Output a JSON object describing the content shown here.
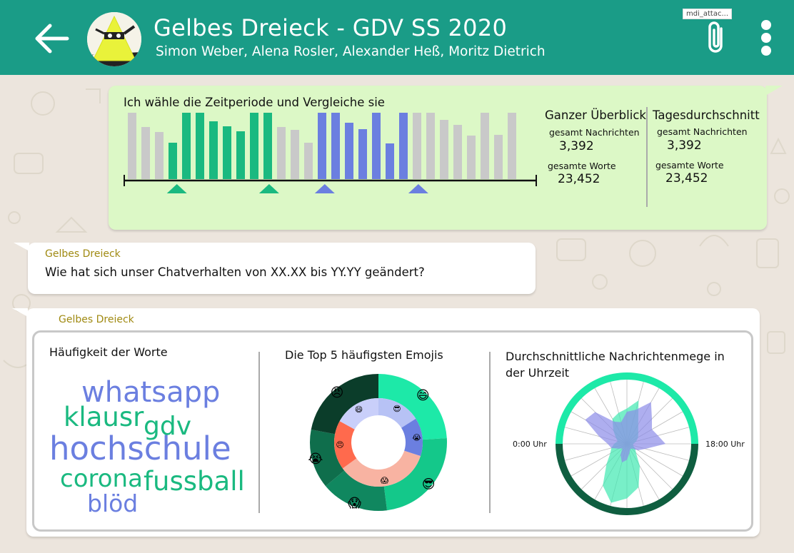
{
  "header": {
    "title": "Gelbes Dreieck - GDV SS 2020",
    "subtitle": "Simon Weber, Alena Rosler, Alexander Heß, Moritz Dietrich",
    "tooltip": "mdi_attac..."
  },
  "colors": {
    "header": "#1a9c87",
    "green": "#1ab980",
    "blue": "#6b7fe0",
    "gray": "#c9c9c9",
    "sender": "#a08a12"
  },
  "message1": {
    "heading": "Ich wähle die Zeitperiode und Vergleiche sie",
    "overview": {
      "title": "Ganzer Überblick",
      "messages_label": "gesamt Nachrichten",
      "messages_value": "3,392",
      "words_label": "gesamte Worte",
      "words_value": "23,452"
    },
    "daily": {
      "title": "Tagesdurchschnitt",
      "messages_label": "gesamt Nachrichten",
      "messages_value": "3,392",
      "words_label": "gesamte Worte",
      "words_value": "23,452"
    },
    "bar_values": [
      93,
      73,
      66,
      51,
      93,
      93,
      81,
      74,
      67,
      93,
      93,
      73,
      69,
      51,
      93,
      93,
      79,
      70,
      93,
      50,
      93,
      93,
      93,
      83,
      76,
      61,
      93,
      62,
      93
    ],
    "bar_groups": [
      "gray",
      "gray",
      "gray",
      "green",
      "green",
      "green",
      "green",
      "green",
      "green",
      "green",
      "green",
      "gray",
      "gray",
      "gray",
      "blue",
      "blue",
      "blue",
      "blue",
      "blue",
      "blue",
      "blue",
      "gray",
      "gray",
      "gray",
      "gray",
      "gray",
      "gray",
      "gray",
      "gray"
    ],
    "markers": [
      {
        "index": 3.3,
        "color": "green"
      },
      {
        "index": 10.1,
        "color": "green"
      },
      {
        "index": 14.2,
        "color": "blue"
      },
      {
        "index": 21.1,
        "color": "blue"
      }
    ]
  },
  "message2": {
    "sender": "Gelbes Dreieck",
    "text": "Wie hat sich unser Chatverhalten von XX.XX bis YY.YY geändert?"
  },
  "message3": {
    "sender": "Gelbes Dreieck",
    "wordcloud": {
      "title": "Häufigkeit der Worte",
      "words": [
        {
          "text": "whatsapp",
          "color": "#6b7fe0"
        },
        {
          "text": "klausr",
          "color": "#1ab980"
        },
        {
          "text": "gdv",
          "color": "#1ab980"
        },
        {
          "text": "hochschule",
          "color": "#6b7fe0"
        },
        {
          "text": "corona",
          "color": "#1ab980"
        },
        {
          "text": "fussball",
          "color": "#1ab980"
        },
        {
          "text": "blöd",
          "color": "#6b7fe0"
        }
      ]
    },
    "emoji": {
      "title": "Die Top 5 häufigsten Emojis",
      "outer_segments": [
        {
          "emoji": "😄",
          "value": 24,
          "color": "#1de9a8"
        },
        {
          "emoji": "😎",
          "value": 24,
          "color": "#14c88a"
        },
        {
          "emoji": "😱",
          "value": 16,
          "color": "#10875f"
        },
        {
          "emoji": "😭",
          "value": 14,
          "color": "#0f6e4c"
        },
        {
          "emoji": "😠",
          "value": 22,
          "color": "#0b3d2a"
        }
      ],
      "inner_segments": [
        {
          "emoji": "😎",
          "value": 16,
          "color": "#b7c2f5"
        },
        {
          "emoji": "😭",
          "value": 14,
          "color": "#6b7fe0"
        },
        {
          "emoji": "😱",
          "value": 35,
          "color": "#f8b3a2"
        },
        {
          "emoji": "😠",
          "value": 18,
          "color": "#ff6a4d"
        },
        {
          "emoji": "😄",
          "value": 17,
          "color": "#c9cffa"
        }
      ]
    },
    "radar": {
      "title": "Durchschnittliche Nachrichtenmege in der Uhrzeit",
      "left_label": "0:00 Uhr",
      "right_label": "18:00 Uhr",
      "green_values": [
        0.55,
        0.7,
        0.35,
        0.25,
        0.2,
        0.15,
        0.1,
        0.1,
        0.15,
        0.2,
        0.4,
        0.7,
        0.85,
        0.95,
        0.75,
        0.45,
        0.3,
        0.25,
        0.2,
        0.15,
        0.2,
        0.3,
        0.45,
        0.5
      ],
      "blue_values": [
        0.5,
        0.55,
        0.75,
        0.55,
        0.45,
        0.5,
        0.6,
        0.3,
        0.2,
        0.1,
        0.1,
        0.15,
        0.25,
        0.3,
        0.2,
        0.1,
        0.15,
        0.25,
        0.3,
        0.45,
        0.75,
        0.7,
        0.4,
        0.35
      ]
    }
  }
}
